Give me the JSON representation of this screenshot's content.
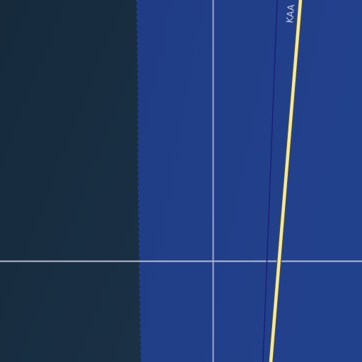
{
  "map": {
    "colors": {
      "land": "#182b3f",
      "water": "#1e3a8a",
      "water_light": "#22428f",
      "shore_dots": "#203e8c",
      "grid_line": "#9ea6d0",
      "road_fill": "#ede7b1",
      "road_casing": "#5a5a3a",
      "boundary_line": "#1b1f7a",
      "label_text": "#c8cbe0"
    },
    "labels": {
      "road_name": "KAA"
    }
  }
}
